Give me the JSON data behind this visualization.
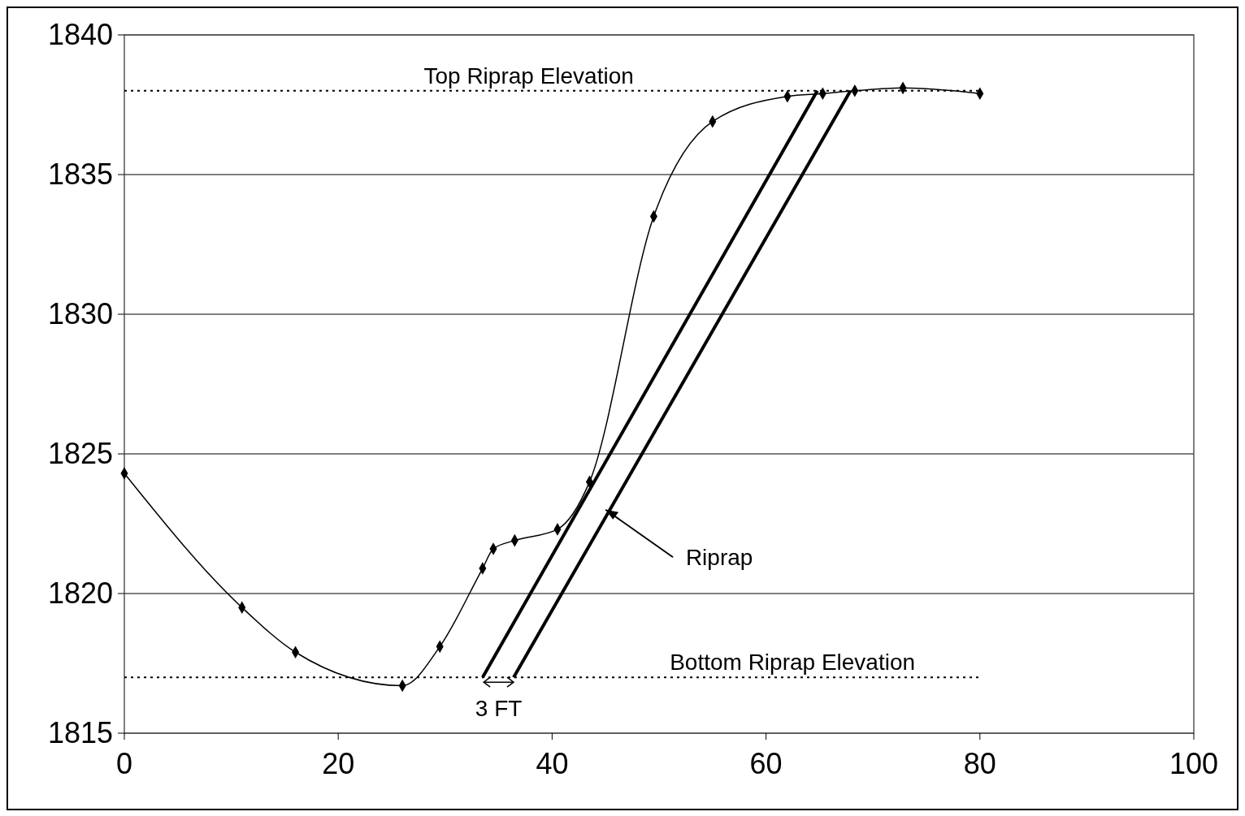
{
  "chart_data": {
    "type": "line",
    "xlim": [
      0,
      100
    ],
    "xticks": [
      0,
      20,
      40,
      60,
      80,
      100
    ],
    "ylim": [
      1815,
      1840
    ],
    "yticks": [
      1815,
      1820,
      1825,
      1830,
      1835,
      1840
    ],
    "grid": "y",
    "series": [
      {
        "color": "#000000",
        "marker": "diamond",
        "x": [
          0,
          11,
          16,
          26,
          29.5,
          33.5,
          34.5,
          36.5,
          40.5,
          43.5,
          49.5,
          55,
          62,
          65.3,
          68.3,
          72.8,
          80
        ],
        "values": [
          1824.3,
          1819.5,
          1817.9,
          1816.7,
          1818.1,
          1820.9,
          1821.6,
          1821.9,
          1822.3,
          1824.0,
          1833.5,
          1836.9,
          1837.8,
          1837.9,
          1838.0,
          1838.1,
          1837.9
        ]
      },
      {
        "color": "#000000",
        "type": "line",
        "marker": "none",
        "x": [
          33.5,
          64.8
        ],
        "values": [
          1817,
          1838
        ]
      },
      {
        "color": "#000000",
        "type": "line",
        "marker": "none",
        "x": [
          36.4,
          67.9
        ],
        "values": [
          1817,
          1838
        ]
      }
    ],
    "ref_lines": [
      {
        "axis": "y",
        "value": 1838,
        "label": "Top Riprap Elevation",
        "line_style": "dotted"
      },
      {
        "axis": "y",
        "value": 1817,
        "label": "Bottom Riprap Elevation",
        "line_style": "dotted"
      }
    ],
    "annotations": [
      {
        "text": "Riprap",
        "x": 45,
        "y": 1823
      },
      {
        "text": "3 FT",
        "x": 35,
        "y": 1817
      }
    ]
  }
}
